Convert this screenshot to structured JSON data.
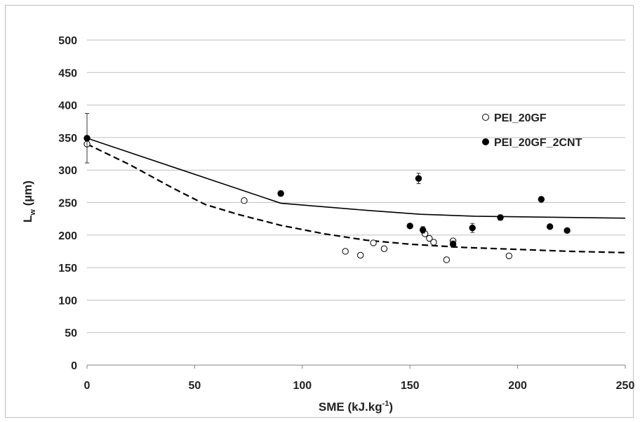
{
  "chart_data": {
    "type": "scatter",
    "title": "",
    "xlabel": "SME",
    "xlabel_unit": "(kJ.kg",
    "xlabel_unit_sup": "-1",
    "xlabel_unit_end": ")",
    "ylabel": "L",
    "ylabel_sub": "w",
    "ylabel_unit": " (µm)",
    "xlim": [
      0,
      250
    ],
    "ylim": [
      0,
      500
    ],
    "xticks": [
      0,
      50,
      100,
      150,
      200,
      250
    ],
    "yticks": [
      0,
      50,
      100,
      150,
      200,
      250,
      300,
      350,
      400,
      450,
      500
    ],
    "grid": "horizontal",
    "legend_position": "top-right",
    "series": [
      {
        "name": "PEI_20GF",
        "marker": "open-circle",
        "color": "#000000",
        "points": [
          {
            "x": 0,
            "y": 340
          },
          {
            "x": 73,
            "y": 253
          },
          {
            "x": 120,
            "y": 175
          },
          {
            "x": 127,
            "y": 169
          },
          {
            "x": 133,
            "y": 188
          },
          {
            "x": 138,
            "y": 179
          },
          {
            "x": 157,
            "y": 202
          },
          {
            "x": 159,
            "y": 195
          },
          {
            "x": 161,
            "y": 189
          },
          {
            "x": 167,
            "y": 162
          },
          {
            "x": 170,
            "y": 191
          },
          {
            "x": 196,
            "y": 168
          }
        ]
      },
      {
        "name": "PEI_20GF_2CNT",
        "marker": "filled-circle",
        "color": "#000000",
        "points": [
          {
            "x": 0,
            "y": 349,
            "err": 38
          },
          {
            "x": 90,
            "y": 264,
            "err": 4
          },
          {
            "x": 150,
            "y": 214
          },
          {
            "x": 154,
            "y": 287,
            "err": 8
          },
          {
            "x": 156,
            "y": 208,
            "err": 5
          },
          {
            "x": 170,
            "y": 186,
            "err": 5
          },
          {
            "x": 179,
            "y": 211,
            "err": 7
          },
          {
            "x": 192,
            "y": 227,
            "err": 4
          },
          {
            "x": 211,
            "y": 255
          },
          {
            "x": 215,
            "y": 213
          },
          {
            "x": 223,
            "y": 207
          }
        ]
      }
    ],
    "fit_lines": [
      {
        "style": "solid",
        "color": "#000000",
        "points": [
          [
            0,
            349
          ],
          [
            90,
            249
          ],
          [
            130,
            238
          ],
          [
            155,
            232
          ],
          [
            180,
            229
          ],
          [
            250,
            226
          ]
        ]
      },
      {
        "style": "dashed",
        "color": "#000000",
        "points": [
          [
            0,
            340
          ],
          [
            20,
            308
          ],
          [
            40,
            272
          ],
          [
            55,
            247
          ],
          [
            70,
            232
          ],
          [
            90,
            215
          ],
          [
            110,
            202
          ],
          [
            130,
            192
          ],
          [
            150,
            186
          ],
          [
            175,
            181
          ],
          [
            200,
            178
          ],
          [
            225,
            175
          ],
          [
            250,
            173
          ]
        ]
      }
    ]
  }
}
